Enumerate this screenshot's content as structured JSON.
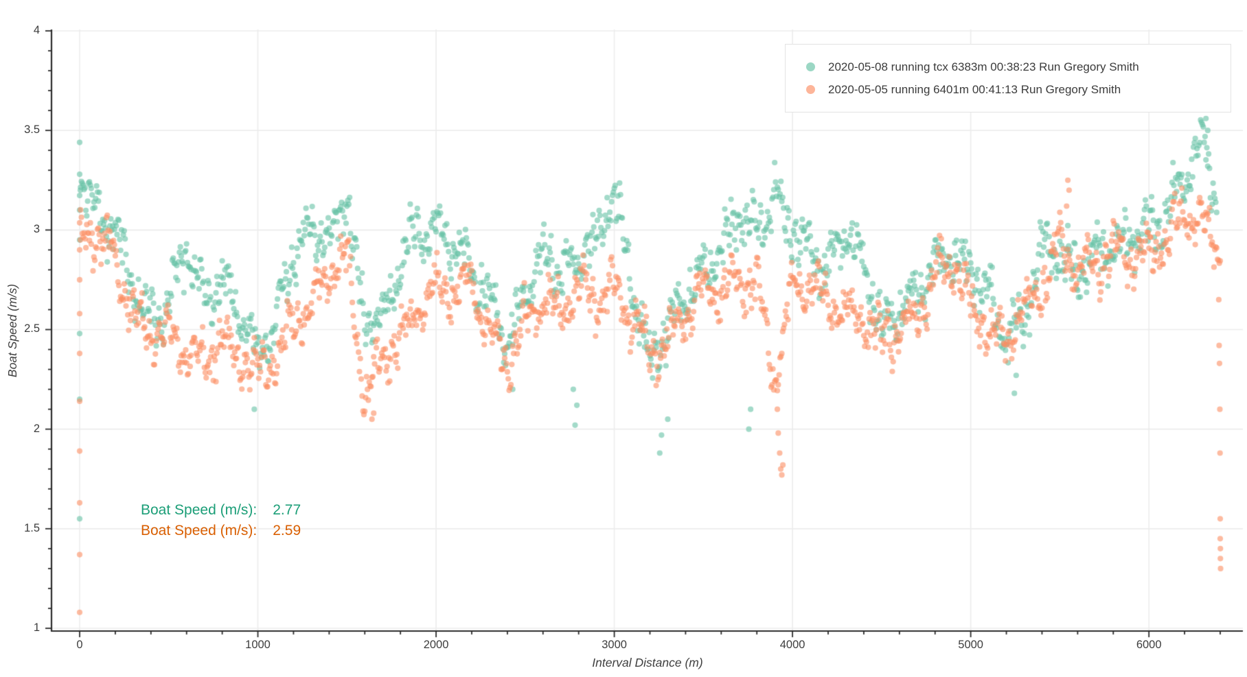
{
  "axes": {
    "x": {
      "title": "Interval Distance (m)",
      "major_tick_labels": [
        "0",
        "1000",
        "2000",
        "3000",
        "4000",
        "5000",
        "6000"
      ],
      "major_tick_values": [
        0,
        1000,
        2000,
        3000,
        4000,
        5000,
        6000
      ],
      "minor_tick_step": 200,
      "minor_tick_max": 6400,
      "range": [
        -158,
        6528
      ]
    },
    "y": {
      "title": "Boat Speed (m/s)",
      "major_tick_labels": [
        "1",
        "1.5",
        "2",
        "2.5",
        "3",
        "3.5",
        "4"
      ],
      "major_tick_values": [
        1,
        1.5,
        2,
        2.5,
        3,
        3.5,
        4
      ],
      "minor_tick_step": 0.1,
      "range": [
        0.99,
        4.01
      ]
    }
  },
  "legend": {
    "items": [
      {
        "label": "2020-05-08 running tcx 6383m 00:38:23 Run Gregory Smith",
        "color": "#66c2a5"
      },
      {
        "label": "2020-05-05 running 6401m 00:41:13 Run Gregory Smith",
        "color": "#fc8d62"
      }
    ]
  },
  "annotations": [
    {
      "label": "Boat Speed (m/s):",
      "value": "2.77",
      "color": "#1b9e77"
    },
    {
      "label": "Boat Speed (m/s):",
      "value": "2.59",
      "color": "#d95f02"
    }
  ],
  "chart_data": {
    "type": "scatter",
    "title": "",
    "xlabel": "Interval Distance (m)",
    "ylabel": "Boat Speed (m/s)",
    "xlim": [
      -158,
      6528
    ],
    "ylim": [
      0.99,
      4.01
    ],
    "grid": true,
    "legend_position": "top-right",
    "marker_radius": 4.1,
    "marker_alpha": 0.6,
    "point_step_m": 5,
    "series": [
      {
        "name": "2020-05-08 running tcx 6383m 00:38:23 Run Gregory Smith",
        "color": "#66c2a5",
        "avg_boat_speed_ms": 2.77,
        "max_x": 6383,
        "seed": 1337,
        "spread": 0.055,
        "trend": [
          [
            0,
            3.3
          ],
          [
            100,
            3.1
          ],
          [
            200,
            3.0
          ],
          [
            300,
            2.72
          ],
          [
            400,
            2.55
          ],
          [
            500,
            2.62
          ],
          [
            600,
            2.92
          ],
          [
            700,
            2.65
          ],
          [
            800,
            2.75
          ],
          [
            900,
            2.6
          ],
          [
            1000,
            2.35
          ],
          [
            1100,
            2.55
          ],
          [
            1200,
            2.88
          ],
          [
            1300,
            3.0
          ],
          [
            1400,
            2.95
          ],
          [
            1500,
            3.18
          ],
          [
            1600,
            2.52
          ],
          [
            1700,
            2.55
          ],
          [
            1800,
            2.82
          ],
          [
            1900,
            3.0
          ],
          [
            2000,
            3.0
          ],
          [
            2100,
            2.92
          ],
          [
            2200,
            2.8
          ],
          [
            2300,
            2.65
          ],
          [
            2400,
            2.45
          ],
          [
            2500,
            2.7
          ],
          [
            2600,
            2.88
          ],
          [
            2700,
            2.8
          ],
          [
            2800,
            2.85
          ],
          [
            2900,
            2.95
          ],
          [
            3000,
            3.18
          ],
          [
            3100,
            2.72
          ],
          [
            3200,
            2.35
          ],
          [
            3300,
            2.5
          ],
          [
            3400,
            2.7
          ],
          [
            3500,
            2.8
          ],
          [
            3600,
            2.92
          ],
          [
            3700,
            3.1
          ],
          [
            3800,
            3.0
          ],
          [
            3900,
            3.18
          ],
          [
            4000,
            3.0
          ],
          [
            4100,
            2.88
          ],
          [
            4200,
            2.8
          ],
          [
            4300,
            3.0
          ],
          [
            4400,
            2.85
          ],
          [
            4500,
            2.52
          ],
          [
            4600,
            2.6
          ],
          [
            4700,
            2.7
          ],
          [
            4800,
            2.82
          ],
          [
            4900,
            2.9
          ],
          [
            5000,
            2.8
          ],
          [
            5100,
            2.68
          ],
          [
            5200,
            2.45
          ],
          [
            5300,
            2.55
          ],
          [
            5400,
            2.9
          ],
          [
            5500,
            2.88
          ],
          [
            5600,
            2.78
          ],
          [
            5700,
            2.88
          ],
          [
            5800,
            2.9
          ],
          [
            5900,
            2.98
          ],
          [
            6000,
            3.0
          ],
          [
            6100,
            3.1
          ],
          [
            6200,
            3.28
          ],
          [
            6300,
            3.45
          ],
          [
            6383,
            3.15
          ]
        ],
        "outliers": [
          [
            0,
            1.55
          ],
          [
            0,
            2.15
          ],
          [
            0,
            2.48
          ],
          [
            0,
            2.95
          ],
          [
            0,
            3.1
          ],
          [
            0,
            3.28
          ],
          [
            0,
            3.44
          ],
          [
            4,
            3.2
          ],
          [
            980,
            2.1
          ],
          [
            2430,
            2.2
          ],
          [
            2770,
            2.2
          ],
          [
            2780,
            2.02
          ],
          [
            2790,
            2.12
          ],
          [
            3255,
            1.88
          ],
          [
            3265,
            1.97
          ],
          [
            3300,
            2.05
          ],
          [
            3755,
            2.0
          ],
          [
            3765,
            2.1
          ],
          [
            5245,
            2.18
          ],
          [
            5255,
            2.27
          ],
          [
            6320,
            3.56
          ],
          [
            6330,
            3.5
          ]
        ]
      },
      {
        "name": "2020-05-05 running 6401m 00:41:13 Run Gregory Smith",
        "color": "#fc8d62",
        "avg_boat_speed_ms": 2.59,
        "max_x": 6401,
        "seed": 7331,
        "spread": 0.05,
        "trend": [
          [
            0,
            2.92
          ],
          [
            100,
            3.0
          ],
          [
            200,
            2.85
          ],
          [
            300,
            2.58
          ],
          [
            400,
            2.45
          ],
          [
            500,
            2.5
          ],
          [
            600,
            2.38
          ],
          [
            700,
            2.35
          ],
          [
            800,
            2.45
          ],
          [
            900,
            2.33
          ],
          [
            1000,
            2.28
          ],
          [
            1100,
            2.35
          ],
          [
            1200,
            2.55
          ],
          [
            1300,
            2.62
          ],
          [
            1400,
            2.8
          ],
          [
            1500,
            2.85
          ],
          [
            1600,
            2.18
          ],
          [
            1700,
            2.35
          ],
          [
            1800,
            2.45
          ],
          [
            1900,
            2.62
          ],
          [
            2000,
            2.7
          ],
          [
            2100,
            2.68
          ],
          [
            2200,
            2.75
          ],
          [
            2300,
            2.48
          ],
          [
            2400,
            2.32
          ],
          [
            2500,
            2.55
          ],
          [
            2600,
            2.65
          ],
          [
            2700,
            2.6
          ],
          [
            2800,
            2.7
          ],
          [
            2900,
            2.65
          ],
          [
            3000,
            2.7
          ],
          [
            3100,
            2.55
          ],
          [
            3200,
            2.38
          ],
          [
            3300,
            2.45
          ],
          [
            3400,
            2.6
          ],
          [
            3500,
            2.7
          ],
          [
            3600,
            2.68
          ],
          [
            3700,
            2.78
          ],
          [
            3800,
            2.7
          ],
          [
            3900,
            2.25
          ],
          [
            4000,
            2.7
          ],
          [
            4100,
            2.75
          ],
          [
            4200,
            2.65
          ],
          [
            4300,
            2.58
          ],
          [
            4400,
            2.55
          ],
          [
            4500,
            2.45
          ],
          [
            4600,
            2.5
          ],
          [
            4700,
            2.55
          ],
          [
            4800,
            2.75
          ],
          [
            4900,
            2.85
          ],
          [
            5000,
            2.6
          ],
          [
            5100,
            2.5
          ],
          [
            5200,
            2.45
          ],
          [
            5300,
            2.6
          ],
          [
            5400,
            2.72
          ],
          [
            5500,
            2.95
          ],
          [
            5600,
            2.8
          ],
          [
            5700,
            2.85
          ],
          [
            5800,
            2.88
          ],
          [
            5900,
            2.88
          ],
          [
            6000,
            2.9
          ],
          [
            6100,
            2.95
          ],
          [
            6200,
            3.08
          ],
          [
            6300,
            3.05
          ],
          [
            6401,
            2.9
          ]
        ],
        "outliers": [
          [
            0,
            1.08
          ],
          [
            0,
            1.37
          ],
          [
            0,
            1.63
          ],
          [
            0,
            1.89
          ],
          [
            0,
            2.14
          ],
          [
            0,
            2.38
          ],
          [
            0,
            2.58
          ],
          [
            0,
            2.75
          ],
          [
            0,
            2.9
          ],
          [
            4,
            2.95
          ],
          [
            1640,
            2.05
          ],
          [
            1650,
            2.08
          ],
          [
            3915,
            2.1
          ],
          [
            3920,
            1.98
          ],
          [
            3928,
            1.88
          ],
          [
            3934,
            1.8
          ],
          [
            3940,
            1.77
          ],
          [
            3946,
            1.82
          ],
          [
            5538,
            3.12
          ],
          [
            5545,
            3.25
          ],
          [
            5552,
            3.2
          ],
          [
            6392,
            2.65
          ],
          [
            6394,
            2.42
          ],
          [
            6396,
            2.33
          ],
          [
            6398,
            2.1
          ],
          [
            6399,
            1.88
          ],
          [
            6400,
            1.55
          ],
          [
            6400,
            1.45
          ],
          [
            6401,
            1.4
          ],
          [
            6401,
            1.35
          ],
          [
            6402,
            1.3
          ]
        ]
      }
    ]
  }
}
